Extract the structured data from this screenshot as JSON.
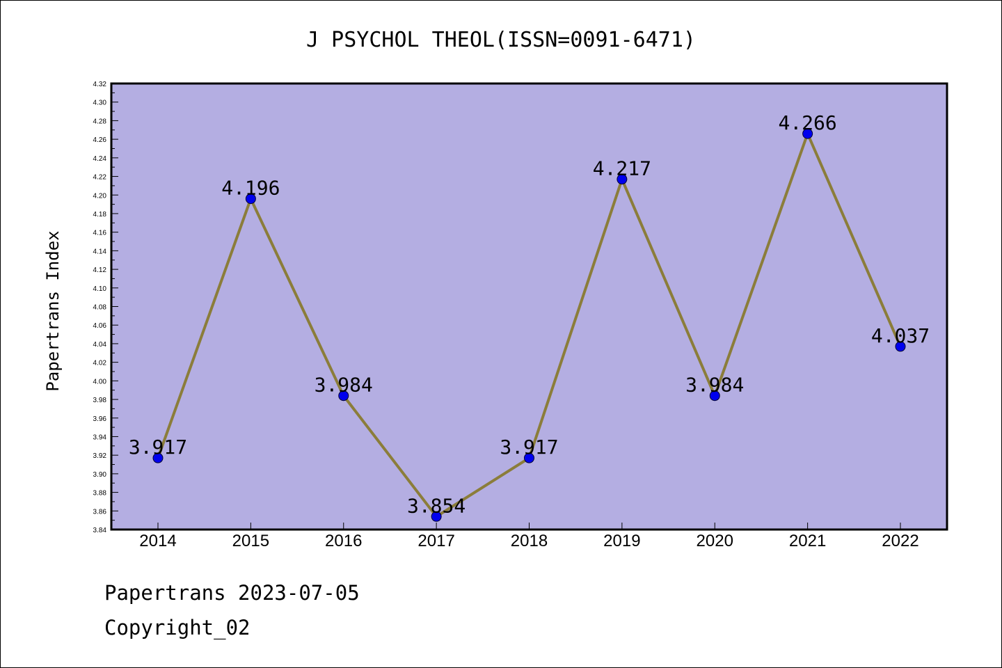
{
  "chart_data": {
    "type": "line",
    "title": "J PSYCHOL THEOL(ISSN=0091-6471)",
    "ylabel": "Papertrans Index",
    "xlabel": "",
    "categories": [
      "2014",
      "2015",
      "2016",
      "2017",
      "2018",
      "2019",
      "2020",
      "2021",
      "2022"
    ],
    "values": [
      3.917,
      4.196,
      3.984,
      3.854,
      3.917,
      4.217,
      3.984,
      4.266,
      4.037
    ],
    "data_labels": [
      "3.917",
      "4.196",
      "3.984",
      "3.854",
      "3.917",
      "4.217",
      "3.984",
      "4.266",
      "4.037"
    ],
    "ylim": [
      3.84,
      4.32
    ],
    "ytick_step": 0.02,
    "grid": false,
    "colors": {
      "plot_background": "#b4aee2",
      "line": "#8b7d3a",
      "marker": "#0000ee"
    }
  },
  "footer": {
    "line1": "Papertrans 2023-07-05",
    "line2": "Copyright_02"
  }
}
